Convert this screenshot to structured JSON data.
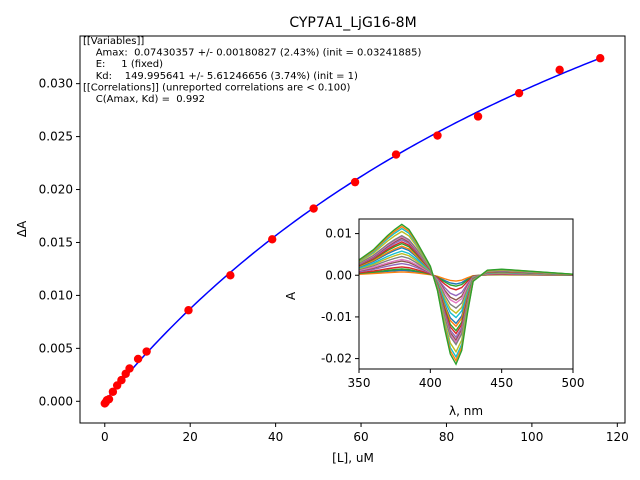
{
  "chart_data": [
    {
      "type": "scatter",
      "title": "CYP7A1_LjG16-8M",
      "xlabel": "[L], uM",
      "ylabel": "ΔA",
      "xlim": [
        -5.8,
        121.8
      ],
      "ylim": [
        -0.00205,
        0.0345
      ],
      "xticks": [
        0,
        20,
        40,
        60,
        80,
        100,
        120
      ],
      "yticks": [
        0.0,
        0.005,
        0.01,
        0.015,
        0.02,
        0.025,
        0.03
      ],
      "grid": false,
      "series": [
        {
          "kind": "points",
          "color": "#ff0000",
          "x": [
            0,
            0.2,
            0.5,
            1.0,
            1.9,
            2.9,
            3.9,
            4.9,
            5.8,
            7.8,
            9.8,
            19.6,
            29.4,
            39.2,
            48.9,
            58.6,
            68.2,
            77.9,
            87.4,
            97.0,
            106.5,
            116.0
          ],
          "y": [
            -0.0002,
            -0.0001,
            0.0001,
            0.0002,
            0.0009,
            0.0015,
            0.002,
            0.0026,
            0.0031,
            0.004,
            0.0047,
            0.0086,
            0.0119,
            0.0153,
            0.0182,
            0.0207,
            0.0233,
            0.0251,
            0.0269,
            0.0291,
            0.0313,
            0.0324
          ]
        },
        {
          "kind": "fit-line",
          "color": "#0000ff",
          "model": {
            "Amax": 0.07430357,
            "E": 1,
            "Kd": 149.995641
          },
          "x_range": [
            0,
            116.0
          ]
        }
      ],
      "annotation": [
        "[[Variables]]",
        "    Amax:  0.07430357 +/- 0.00180827 (2.43%) (init = 0.03241885)",
        "    E:     1 (fixed)",
        "    Kd:    149.995641 +/- 5.61246656 (3.74%) (init = 1)",
        "[[Correlations]] (unreported correlations are < 0.100)",
        "    C(Amax, Kd) =  0.992"
      ]
    },
    {
      "type": "line",
      "title": "",
      "xlabel": "λ, nm",
      "ylabel": "A",
      "xlim": [
        350,
        500
      ],
      "ylim": [
        -0.0225,
        0.0135
      ],
      "xticks": [
        350,
        400,
        450,
        500
      ],
      "yticks": [
        0.01,
        0.0,
        -0.01,
        -0.02
      ],
      "grid": false,
      "wavelengths": [
        350,
        360,
        370,
        375,
        380,
        385,
        390,
        400,
        405,
        410,
        414,
        418,
        422,
        426,
        430,
        440,
        450,
        460,
        470,
        480,
        490,
        500
      ],
      "spectral_curve_shape": [
        0.3,
        0.5,
        0.78,
        0.9,
        1.0,
        0.9,
        0.68,
        0.18,
        -0.3,
        -1.05,
        -1.55,
        -1.75,
        -1.48,
        -0.75,
        -0.12,
        0.1,
        0.12,
        0.1,
        0.08,
        0.06,
        0.04,
        0.02
      ],
      "series": [
        {
          "color": "#1f77b4",
          "peak": 0.0012
        },
        {
          "color": "#ff7f0e",
          "peak": 0.0008
        },
        {
          "color": "#2ca02c",
          "peak": 0.0015
        },
        {
          "color": "#d62728",
          "peak": 0.002
        },
        {
          "color": "#9467bd",
          "peak": 0.0028
        },
        {
          "color": "#8c564b",
          "peak": 0.0034
        },
        {
          "color": "#e377c2",
          "peak": 0.0038
        },
        {
          "color": "#7f7f7f",
          "peak": 0.0045
        },
        {
          "color": "#bcbd22",
          "peak": 0.0052
        },
        {
          "color": "#17becf",
          "peak": 0.0058
        },
        {
          "color": "#1f77b4",
          "peak": 0.0066
        },
        {
          "color": "#ff7f0e",
          "peak": 0.007
        },
        {
          "color": "#2ca02c",
          "peak": 0.0076
        },
        {
          "color": "#d62728",
          "peak": 0.008
        },
        {
          "color": "#9467bd",
          "peak": 0.0085
        },
        {
          "color": "#8c564b",
          "peak": 0.0089
        },
        {
          "color": "#e377c2",
          "peak": 0.0092
        },
        {
          "color": "#7f7f7f",
          "peak": 0.0095
        },
        {
          "color": "#bcbd22",
          "peak": 0.0105
        },
        {
          "color": "#17becf",
          "peak": 0.0112
        },
        {
          "color": "#ff7f0e",
          "peak": 0.0117
        },
        {
          "color": "#2ca02c",
          "peak": 0.0122
        }
      ]
    }
  ]
}
